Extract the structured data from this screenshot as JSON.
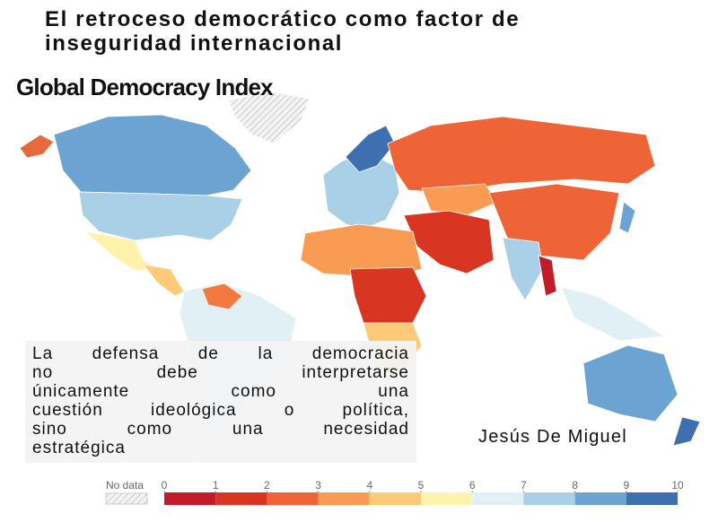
{
  "title_lines": [
    "El retroceso democrático como factor de",
    "inseguridad internacional"
  ],
  "map_title": "Global Democracy Index",
  "quote_lines": [
    "La defensa de la democracia",
    "no debe interpretarse",
    "únicamente como una",
    "cuestión ideológica o política,",
    "sino como una necesidad",
    "estratégica"
  ],
  "author": "Jesús De Miguel",
  "legend": {
    "no_data": "No data",
    "ticks": [
      0,
      1,
      2,
      3,
      4,
      5,
      6,
      7,
      8,
      9,
      10
    ],
    "colors": [
      "#c11c2a",
      "#d83523",
      "#ee6437",
      "#f99b52",
      "#fdcb78",
      "#fef2ad",
      "#e1f0f5",
      "#a9d0e6",
      "#6ba3d2",
      "#3e6fb0"
    ]
  }
}
